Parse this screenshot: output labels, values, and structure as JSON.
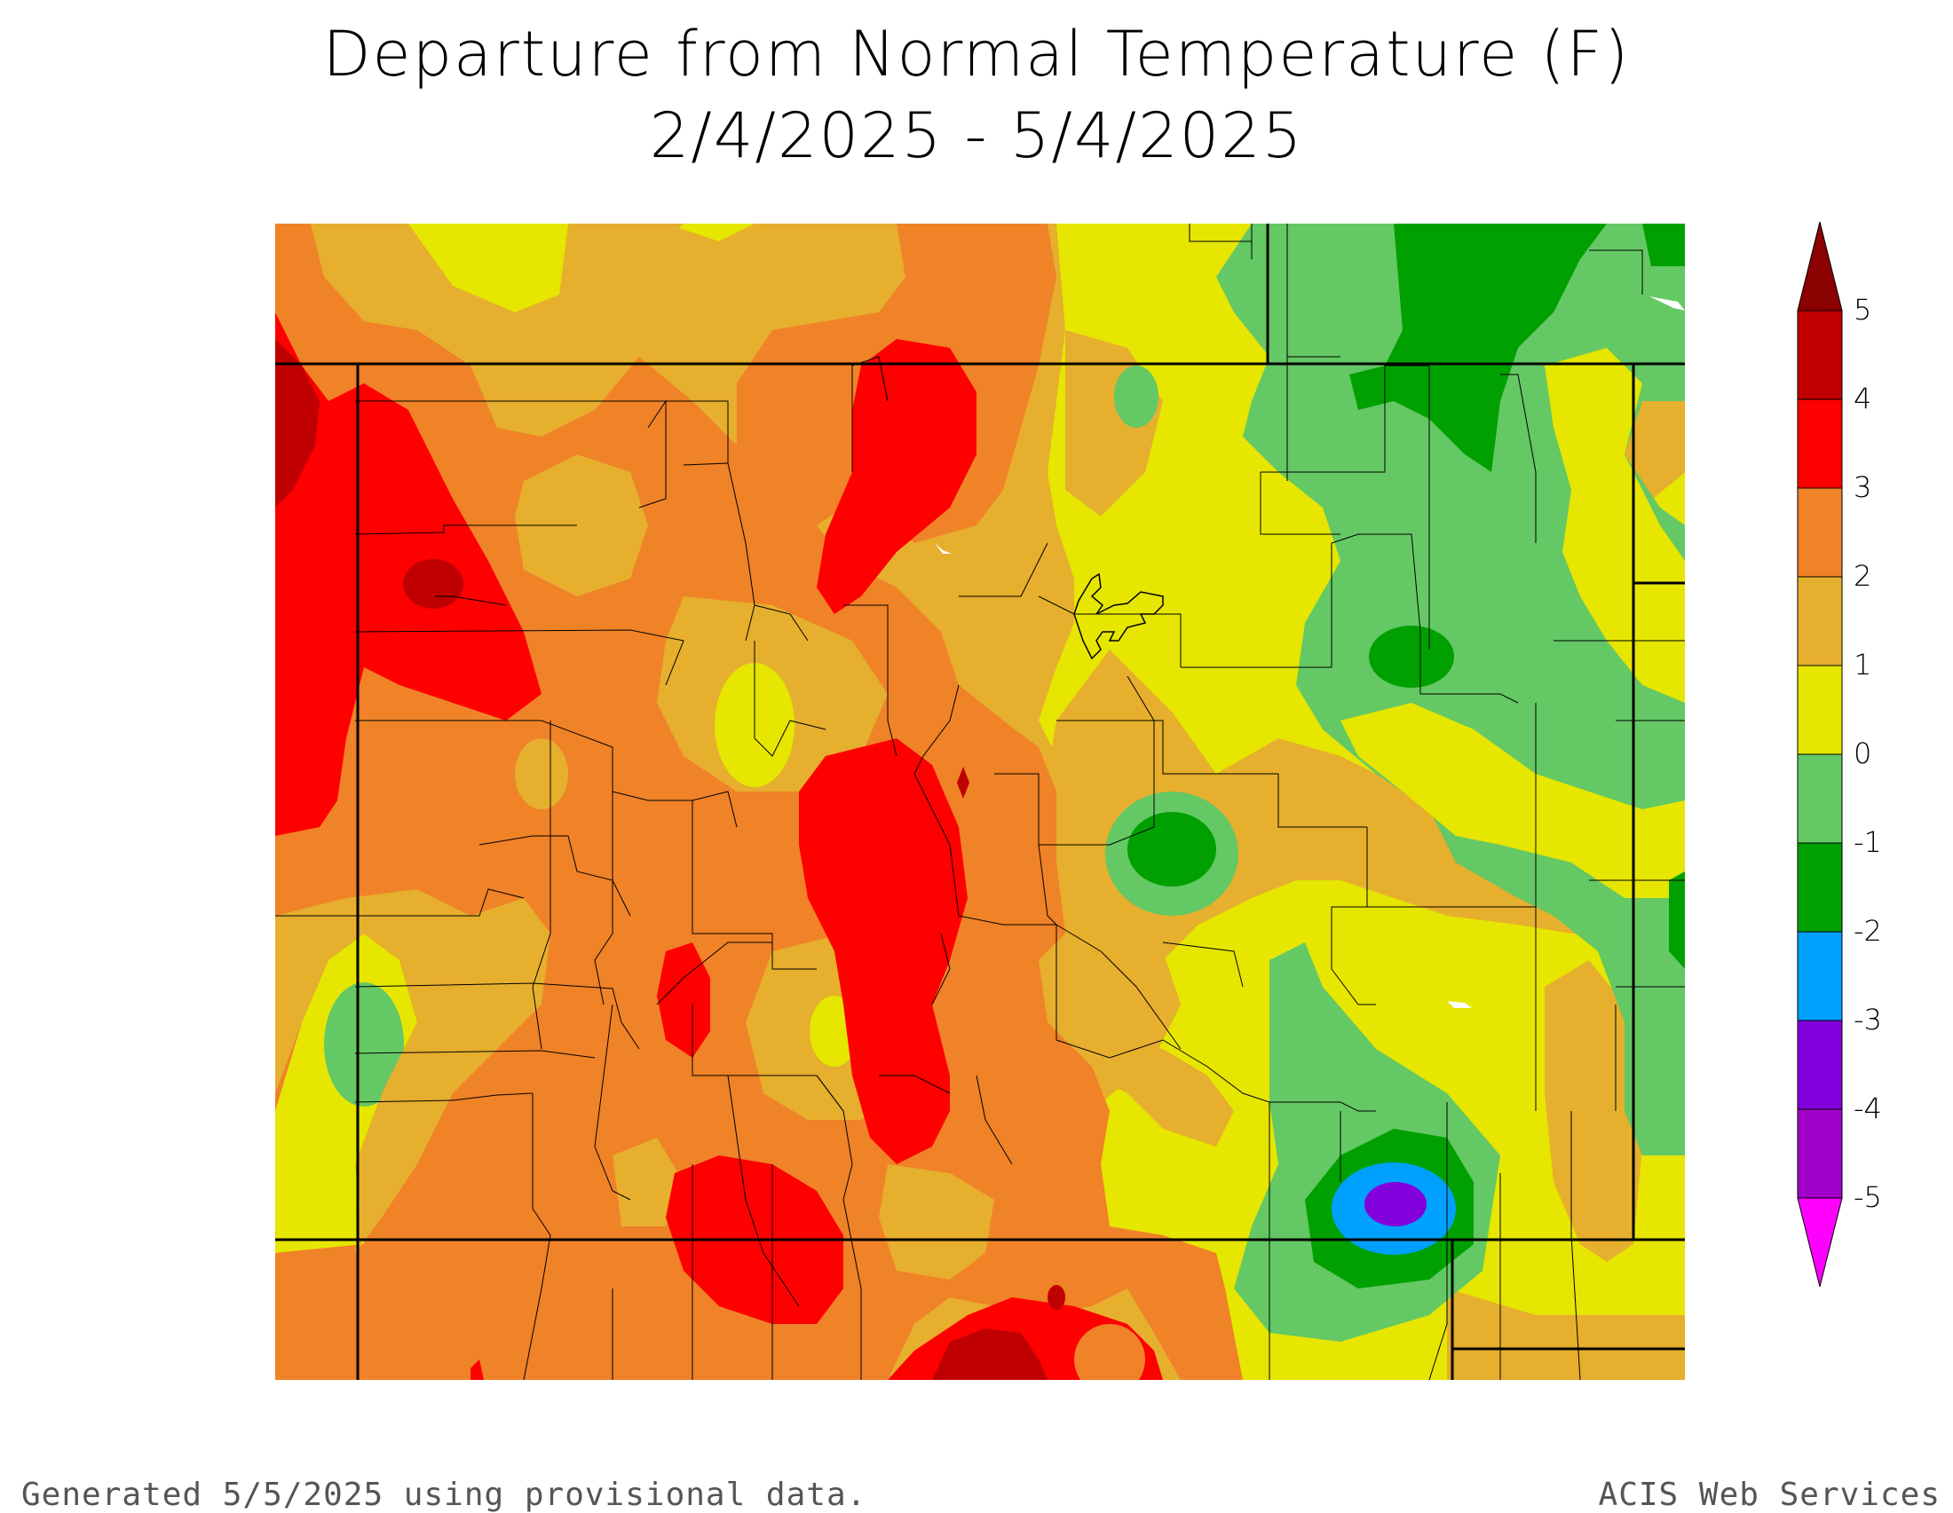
{
  "title": {
    "line1": "Departure from Normal Temperature (F)",
    "line2": "2/4/2025 - 5/4/2025"
  },
  "legend": {
    "unit": "F",
    "labels": [
      "5",
      "4",
      "3",
      "2",
      "1",
      "0",
      "-1",
      "-2",
      "-3",
      "-4",
      "-5"
    ],
    "colors": {
      "above_5": "#8b0000",
      "4_to_5": "#c00000",
      "3_to_4": "#ff0000",
      "2_to_3": "#f08228",
      "1_to_2": "#e6af2d",
      "0_to_1": "#e6e600",
      "m1_to_0": "#64c864",
      "m2_to_m1": "#00a000",
      "m3_to_m2": "#00a0ff",
      "m4_to_m3": "#8200dc",
      "m5_to_m4": "#a000c8",
      "below_m5": "#ff00ff"
    }
  },
  "footer": {
    "left": "Generated 5/5/2025 using provisional data.",
    "right": "ACIS Web Services"
  }
}
